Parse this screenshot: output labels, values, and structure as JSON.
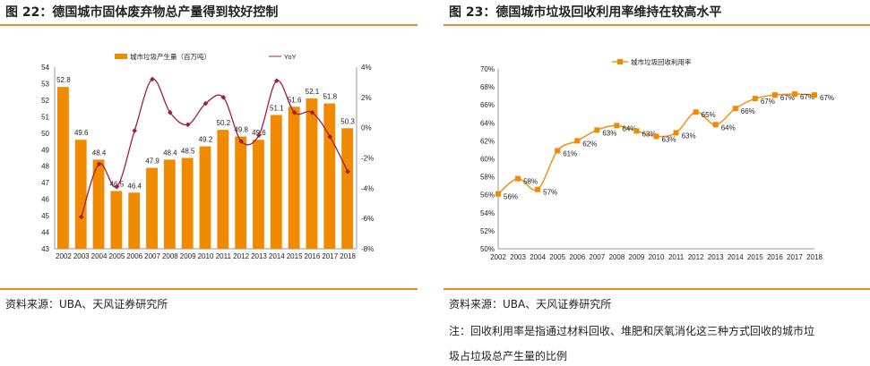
{
  "left": {
    "title": "图 22：德国城市固体废弃物总产量得到较好控制",
    "source": "资料来源：UBA、天风证券研究所"
  },
  "right": {
    "title": "图 23：德国城市垃圾回收利用率维持在较高水平",
    "source": "资料来源：UBA、天风证券研究所",
    "note1": "注：回收利用率是指通过材料回收、堆肥和厌氧消化这三种方式回收的城市垃",
    "note2": "圾占垃圾总产生量的比例"
  },
  "colors": {
    "bar": "#f08a00",
    "yoy": "#a0203a",
    "line": "#f0901a",
    "rule": "#e8892f"
  },
  "chart_data": [
    {
      "type": "bar+line",
      "categories": [
        "2002",
        "2003",
        "2004",
        "2005",
        "2006",
        "2007",
        "2008",
        "2009",
        "2010",
        "2011",
        "2012",
        "2013",
        "2014",
        "2015",
        "2016",
        "2017",
        "2018"
      ],
      "series": [
        {
          "name": "城市垃圾产生量（百万吨）",
          "type": "bar",
          "axis": "left",
          "values": [
            52.8,
            49.6,
            48.4,
            46.5,
            46.4,
            47.9,
            48.4,
            48.5,
            49.2,
            50.2,
            49.8,
            49.6,
            51.1,
            51.6,
            52.1,
            51.8,
            50.3
          ],
          "labels": [
            "52.8",
            "49.6",
            "48.4",
            "46.5",
            "46.4",
            "47.9",
            "48.4",
            "48.5",
            "49.2",
            "50.2",
            "49.8",
            "49.6",
            "51.1",
            "51.6",
            "52.1",
            "51.8",
            "50.3"
          ]
        },
        {
          "name": "YoY",
          "type": "line",
          "axis": "right",
          "values": [
            null,
            -5.9,
            -2.4,
            -3.9,
            -0.2,
            3.2,
            1.0,
            0.2,
            1.6,
            2.0,
            -0.9,
            -0.5,
            3.1,
            1.0,
            1.0,
            -0.6,
            -2.9
          ]
        }
      ],
      "ylim": [
        43,
        54
      ],
      "yticks": [
        "43",
        "44",
        "45",
        "46",
        "47",
        "48",
        "49",
        "50",
        "51",
        "52",
        "53",
        "54"
      ],
      "y2lim": [
        -8,
        4
      ],
      "y2ticks": [
        "-8%",
        "-6%",
        "-4%",
        "-2%",
        "0%",
        "2%",
        "4%"
      ],
      "legend": "top"
    },
    {
      "type": "line",
      "categories": [
        "2002",
        "2003",
        "2004",
        "2005",
        "2006",
        "2007",
        "2008",
        "2009",
        "2010",
        "2011",
        "2012",
        "2013",
        "2014",
        "2015",
        "2016",
        "2017",
        "2018"
      ],
      "series": [
        {
          "name": "城市垃圾回收利用率",
          "values": [
            56.1,
            57.8,
            56.6,
            60.9,
            62.0,
            63.2,
            63.7,
            63.1,
            62.5,
            62.9,
            65.2,
            63.8,
            65.6,
            66.7,
            67.1,
            67.2,
            67.1
          ],
          "labels": [
            "56%",
            "58%",
            "57%",
            "61%",
            "62%",
            "63%",
            "64%",
            "63%",
            "63%",
            "63%",
            "65%",
            "64%",
            "66%",
            "67%",
            "67%",
            "67%",
            "67%"
          ]
        }
      ],
      "ylim": [
        50,
        70
      ],
      "yticks": [
        "50%",
        "52%",
        "54%",
        "56%",
        "58%",
        "60%",
        "62%",
        "64%",
        "66%",
        "68%",
        "70%"
      ],
      "legend": "top"
    }
  ]
}
